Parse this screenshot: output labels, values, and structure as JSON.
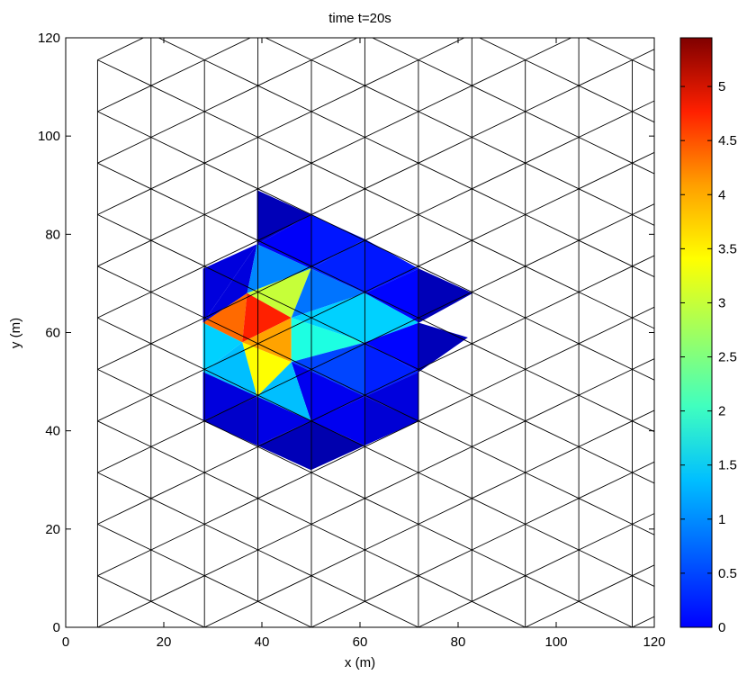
{
  "chart_data": {
    "type": "heatmap",
    "title": "time t=20s",
    "xlabel": "x (m)",
    "ylabel": "y (m)",
    "xlim": [
      0,
      120
    ],
    "ylim": [
      0,
      120
    ],
    "x_ticks": [
      "0",
      "20",
      "40",
      "60",
      "80",
      "100",
      "120"
    ],
    "y_ticks": [
      "0",
      "20",
      "40",
      "60",
      "80",
      "100",
      "120"
    ],
    "colorbar": {
      "range": [
        0,
        5.45
      ],
      "colormap": "jet",
      "ticks": [
        "0",
        "0.5",
        "1",
        "1.5",
        "2",
        "2.5",
        "3",
        "3.5",
        "4",
        "4.5",
        "5"
      ]
    },
    "cells": [
      {
        "pts": [
          [
            39,
            89
          ],
          [
            50,
            84
          ],
          [
            39,
            78
          ]
        ],
        "value": 0.3
      },
      {
        "pts": [
          [
            50,
            84
          ],
          [
            61,
            79
          ],
          [
            50,
            73
          ]
        ],
        "value": 0.8
      },
      {
        "pts": [
          [
            50,
            84
          ],
          [
            39,
            78
          ],
          [
            50,
            73
          ]
        ],
        "value": 0.65
      },
      {
        "pts": [
          [
            61,
            79
          ],
          [
            72,
            73
          ],
          [
            61,
            68
          ]
        ],
        "value": 0.8
      },
      {
        "pts": [
          [
            61,
            79
          ],
          [
            50,
            73
          ],
          [
            61,
            68
          ]
        ],
        "value": 0.85
      },
      {
        "pts": [
          [
            72,
            73
          ],
          [
            83,
            68
          ],
          [
            72,
            62
          ]
        ],
        "value": 0.3
      },
      {
        "pts": [
          [
            72,
            73
          ],
          [
            61,
            68
          ],
          [
            72,
            62
          ]
        ],
        "value": 0.7
      },
      {
        "pts": [
          [
            28,
            73
          ],
          [
            39,
            78
          ],
          [
            28,
            62
          ]
        ],
        "value": 0.5
      },
      {
        "pts": [
          [
            39,
            78
          ],
          [
            28,
            62
          ],
          [
            37,
            68
          ]
        ],
        "value": 0.5
      },
      {
        "pts": [
          [
            39,
            78
          ],
          [
            50,
            73
          ],
          [
            37,
            68
          ]
        ],
        "value": 1.4
      },
      {
        "pts": [
          [
            50,
            73
          ],
          [
            37,
            68
          ],
          [
            46,
            63
          ]
        ],
        "value": 3.1
      },
      {
        "pts": [
          [
            50,
            73
          ],
          [
            61,
            68
          ],
          [
            46,
            63
          ]
        ],
        "value": 1.3
      },
      {
        "pts": [
          [
            61,
            68
          ],
          [
            46,
            63
          ],
          [
            61,
            58
          ]
        ],
        "value": 1.8
      },
      {
        "pts": [
          [
            61,
            68
          ],
          [
            72,
            62
          ],
          [
            61,
            58
          ]
        ],
        "value": 1.8
      },
      {
        "pts": [
          [
            72,
            62
          ],
          [
            61,
            58
          ],
          [
            72,
            52
          ]
        ],
        "value": 0.7
      },
      {
        "pts": [
          [
            72,
            62
          ],
          [
            82,
            59
          ],
          [
            72,
            52
          ]
        ],
        "value": 0.3
      },
      {
        "pts": [
          [
            28,
            62
          ],
          [
            37,
            68
          ],
          [
            36,
            58
          ]
        ],
        "value": 4.2
      },
      {
        "pts": [
          [
            37,
            68
          ],
          [
            46,
            63
          ],
          [
            36,
            58
          ]
        ],
        "value": 4.6
      },
      {
        "pts": [
          [
            28,
            62
          ],
          [
            36,
            58
          ],
          [
            28,
            52
          ]
        ],
        "value": 1.8
      },
      {
        "pts": [
          [
            36,
            58
          ],
          [
            46,
            63
          ],
          [
            46,
            54
          ]
        ],
        "value": 3.9
      },
      {
        "pts": [
          [
            46,
            63
          ],
          [
            61,
            58
          ],
          [
            46,
            54
          ]
        ],
        "value": 2.2
      },
      {
        "pts": [
          [
            36,
            58
          ],
          [
            46,
            54
          ],
          [
            39,
            47
          ]
        ],
        "value": 3.4
      },
      {
        "pts": [
          [
            36,
            58
          ],
          [
            28,
            52
          ],
          [
            39,
            47
          ]
        ],
        "value": 1.7
      },
      {
        "pts": [
          [
            46,
            54
          ],
          [
            61,
            58
          ],
          [
            61,
            47
          ]
        ],
        "value": 1.05
      },
      {
        "pts": [
          [
            46,
            54
          ],
          [
            61,
            47
          ],
          [
            50,
            42
          ]
        ],
        "value": 0.6
      },
      {
        "pts": [
          [
            46,
            54
          ],
          [
            39,
            47
          ],
          [
            50,
            42
          ]
        ],
        "value": 1.7
      },
      {
        "pts": [
          [
            61,
            58
          ],
          [
            72,
            52
          ],
          [
            61,
            47
          ]
        ],
        "value": 0.85
      },
      {
        "pts": [
          [
            72,
            52
          ],
          [
            61,
            47
          ],
          [
            72,
            42
          ]
        ],
        "value": 0.5
      },
      {
        "pts": [
          [
            28,
            52
          ],
          [
            39,
            47
          ],
          [
            28,
            42
          ]
        ],
        "value": 0.5
      },
      {
        "pts": [
          [
            39,
            47
          ],
          [
            50,
            42
          ],
          [
            39,
            37
          ]
        ],
        "value": 0.55
      },
      {
        "pts": [
          [
            39,
            47
          ],
          [
            28,
            42
          ],
          [
            39,
            37
          ]
        ],
        "value": 0.4
      },
      {
        "pts": [
          [
            50,
            42
          ],
          [
            61,
            47
          ],
          [
            61,
            37
          ]
        ],
        "value": 0.6
      },
      {
        "pts": [
          [
            61,
            47
          ],
          [
            72,
            42
          ],
          [
            61,
            37
          ]
        ],
        "value": 0.45
      },
      {
        "pts": [
          [
            50,
            42
          ],
          [
            39,
            37
          ],
          [
            50,
            32
          ]
        ],
        "value": 0.3
      },
      {
        "pts": [
          [
            50,
            42
          ],
          [
            61,
            37
          ],
          [
            50,
            32
          ]
        ],
        "value": 0.25
      }
    ]
  }
}
